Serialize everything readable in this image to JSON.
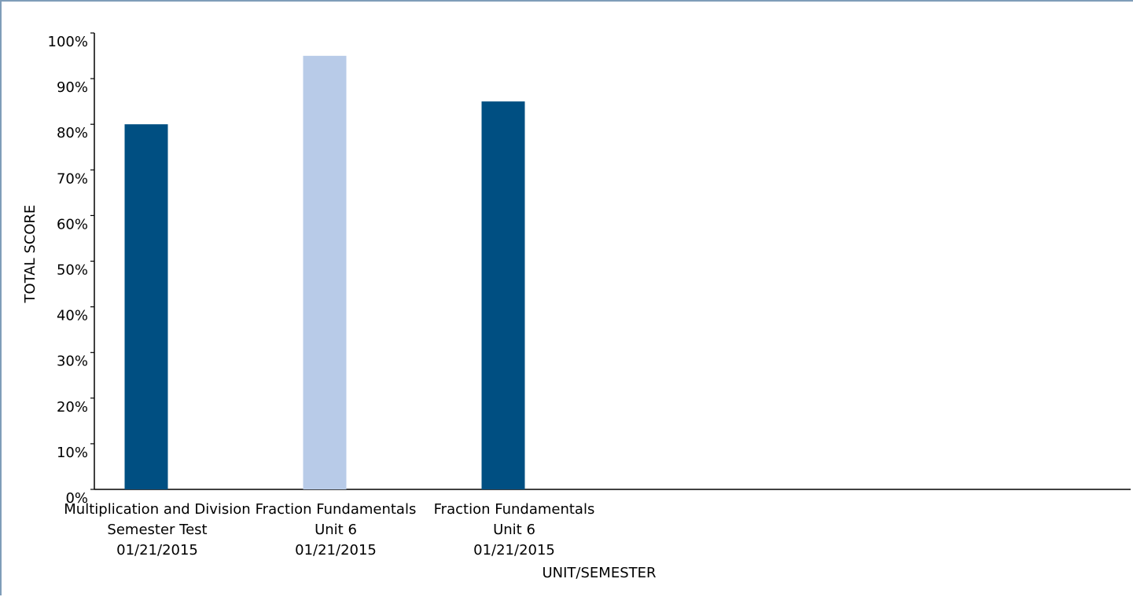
{
  "chart_data": {
    "type": "bar",
    "categories": [
      [
        "Multiplication and Division",
        "Semester Test",
        "01/21/2015"
      ],
      [
        "Fraction Fundamentals",
        "Unit 6",
        "01/21/2015"
      ],
      [
        "Fraction Fundamentals",
        "Unit 6",
        "01/21/2015"
      ]
    ],
    "values": [
      80,
      95,
      85
    ],
    "bar_colors": [
      "#004f82",
      "#b8cbe8",
      "#004f82"
    ],
    "xlabel": "UNIT/SEMESTER",
    "ylabel": "TOTAL SCORE",
    "ylim": [
      0,
      100
    ],
    "yticks": [
      "0%",
      "10%",
      "20%",
      "30%",
      "40%",
      "50%",
      "60%",
      "70%",
      "80%",
      "90%",
      "100%"
    ],
    "grid": false,
    "title": ""
  }
}
